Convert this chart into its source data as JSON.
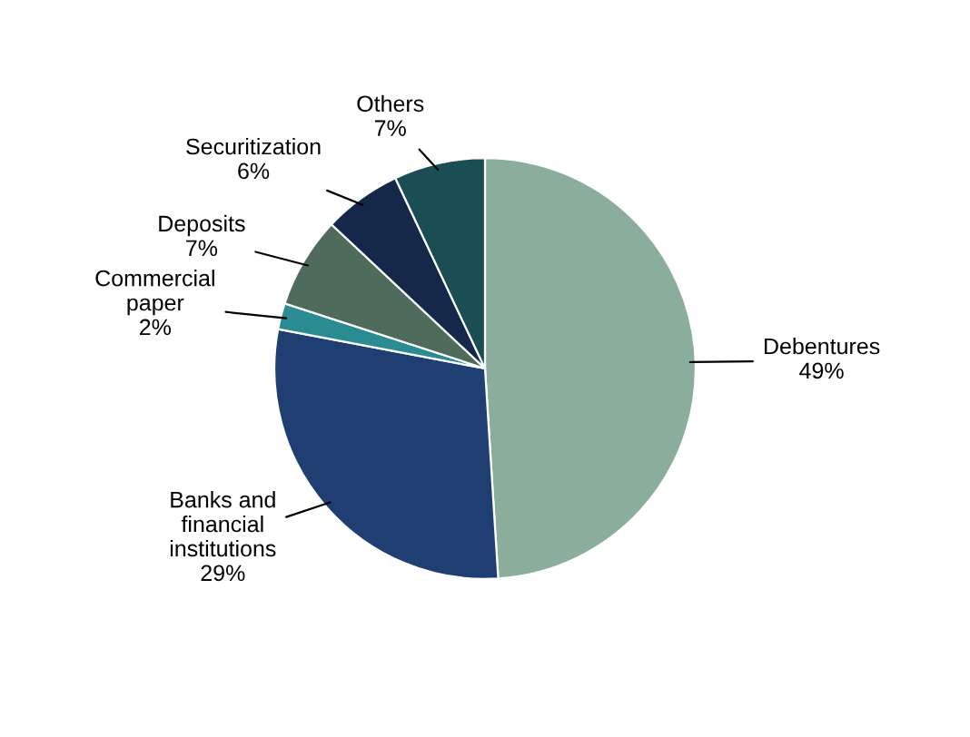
{
  "chart_data": {
    "type": "pie",
    "categories": [
      "Debentures",
      "Banks and\nfinancial\ninstitutions",
      "Commercial\npaper",
      "Deposits",
      "Securitization",
      "Others"
    ],
    "values": [
      49,
      29,
      2,
      7,
      6,
      7
    ],
    "value_labels": [
      "49%",
      "29%",
      "2%",
      "7%",
      "6%",
      "7%"
    ],
    "colors": [
      "#8aae9b",
      "#1f3f73",
      "#2a8c92",
      "#4e6b5c",
      "#16284a",
      "#1b4d55"
    ],
    "legend": false
  }
}
